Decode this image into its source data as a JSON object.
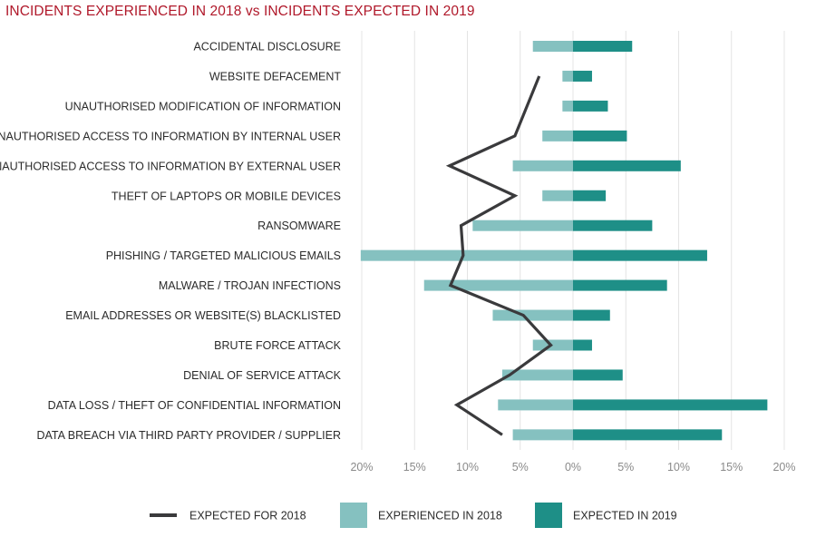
{
  "chart_data": {
    "type": "bar",
    "title": "INCIDENTS EXPERIENCED IN 2018 vs INCIDENTS EXPECTED IN 2019",
    "categories": [
      "ACCIDENTAL DISCLOSURE",
      "WEBSITE DEFACEMENT",
      "UNAUTHORISED MODIFICATION OF INFORMATION",
      "UNAUTHORISED ACCESS TO INFORMATION BY INTERNAL USER",
      "UNAUTHORISED ACCESS TO INFORMATION BY EXTERNAL USER",
      "THEFT OF LAPTOPS OR MOBILE DEVICES",
      "RANSOMWARE",
      "PHISHING / TARGETED MALICIOUS EMAILS",
      "MALWARE / TROJAN INFECTIONS",
      "EMAIL ADDRESSES OR WEBSITE(S) BLACKLISTED",
      "BRUTE FORCE ATTACK",
      "DENIAL OF SERVICE ATTACK",
      "DATA LOSS / THEFT OF CONFIDENTIAL INFORMATION",
      "DATA BREACH VIA THIRD PARTY PROVIDER / SUPPLIER"
    ],
    "series": [
      {
        "name": "EXPECTED FOR 2018",
        "kind": "line",
        "color": "#3a3a3c",
        "values": [
          null,
          3.2,
          null,
          5.5,
          11.7,
          5.5,
          10.6,
          10.4,
          11.6,
          4.7,
          2.1,
          6.0,
          11.0,
          6.7
        ]
      },
      {
        "name": "EXPERIENCED IN 2018",
        "kind": "bar-left",
        "color": "#85c1c0",
        "values": [
          3.8,
          1.0,
          1.0,
          2.9,
          5.7,
          2.9,
          9.5,
          20.1,
          14.1,
          7.6,
          3.8,
          6.7,
          7.1,
          5.7
        ]
      },
      {
        "name": "EXPECTED IN 2019",
        "kind": "bar-right",
        "color": "#1e8f87",
        "values": [
          5.6,
          1.8,
          3.3,
          5.1,
          10.2,
          3.1,
          7.5,
          12.7,
          8.9,
          3.5,
          1.8,
          4.7,
          18.4,
          14.1
        ]
      }
    ],
    "x_ticks": [
      "20%",
      "15%",
      "10%",
      "5%",
      "0%",
      "5%",
      "10%",
      "15%",
      "20%"
    ],
    "xlim": [
      -20,
      20
    ],
    "grid": true,
    "legend": {
      "placement": "bottom"
    }
  }
}
